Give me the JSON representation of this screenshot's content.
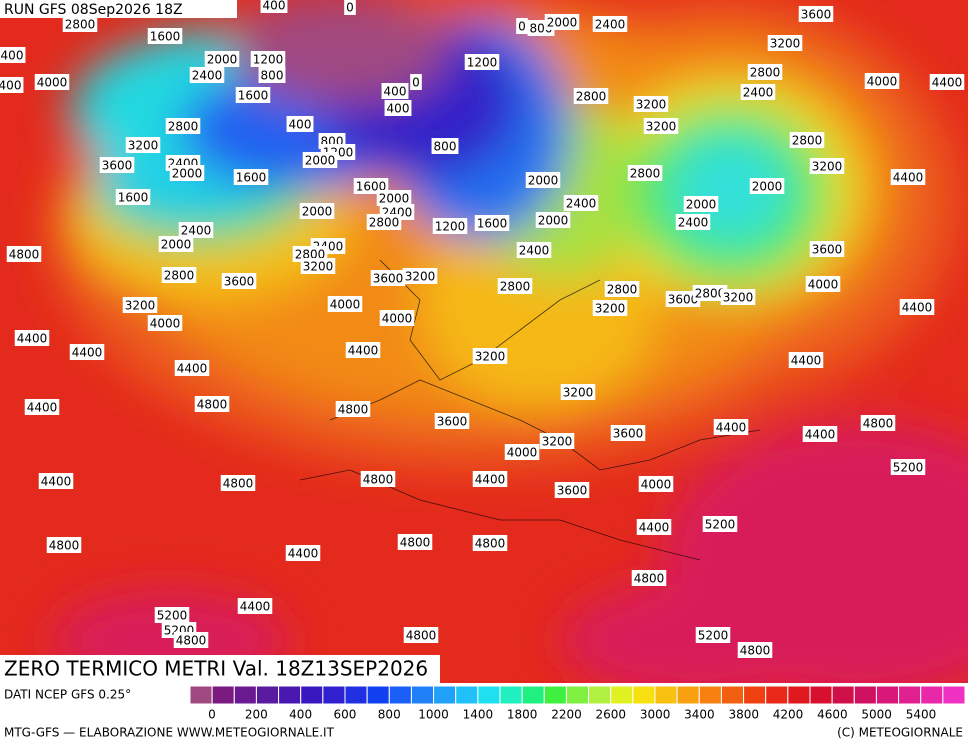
{
  "header": {
    "run": "RUN GFS 08Sep2026 18Z"
  },
  "map": {
    "title": "ZERO TERMICO METRI Val. 18Z13SEP2026",
    "contour_labels": [
      "2800",
      "1600",
      "400",
      "400",
      "4000",
      "2000",
      "1200",
      "800",
      "2400",
      "1600",
      "400",
      "0",
      "2800",
      "3200",
      "400",
      "800",
      "1200",
      "2000",
      "2400",
      "2000",
      "3600",
      "1600",
      "1600",
      "1600",
      "2000",
      "2400",
      "2800",
      "2000",
      "2400",
      "2000",
      "2400",
      "2800",
      "3200",
      "2800",
      "3600",
      "3600",
      "3200",
      "3200",
      "4000",
      "4000",
      "4000",
      "4800",
      "4400",
      "4400",
      "4400",
      "4400",
      "4400",
      "4800",
      "4800",
      "400",
      "400",
      "0",
      "800",
      "1200",
      "0",
      "800",
      "2000",
      "2400",
      "3600",
      "3200",
      "2800",
      "4000",
      "4400",
      "2400",
      "2800",
      "3200",
      "3200",
      "2800",
      "3200",
      "2800",
      "2000",
      "2000",
      "4400",
      "2400",
      "2000",
      "2000",
      "2400",
      "1200",
      "1600",
      "2400",
      "3600",
      "2800",
      "2800",
      "4000",
      "3600",
      "2800",
      "3200",
      "3200",
      "4400",
      "3200",
      "4400",
      "3200",
      "3600",
      "4400",
      "4400",
      "4800",
      "3600",
      "3200",
      "4000",
      "4400",
      "4800",
      "4800",
      "4400",
      "3600",
      "4000",
      "5200",
      "5200",
      "4400",
      "4800",
      "4400",
      "4800",
      "4800",
      "4800",
      "4400",
      "5200",
      "5200",
      "4800",
      "4800",
      "5200",
      "4800"
    ]
  },
  "legend": {
    "source": "DATI NCEP GFS 0.25°",
    "colors": [
      "#a04880",
      "#7a1a80",
      "#6a1a90",
      "#5a1aa0",
      "#4a18b0",
      "#3a18c0",
      "#3020d0",
      "#2030e0",
      "#1040f0",
      "#1a60f8",
      "#2080f8",
      "#20a0f8",
      "#20c0f8",
      "#20e0f0",
      "#20f0c0",
      "#20f080",
      "#40f040",
      "#80f040",
      "#b0f040",
      "#e0f020",
      "#f8e010",
      "#f8c010",
      "#f8a010",
      "#f88010",
      "#f06010",
      "#f04010",
      "#e82818",
      "#e01820",
      "#d81030",
      "#d01048",
      "#d01060",
      "#d81878",
      "#e02090",
      "#e828a8",
      "#f030c0"
    ],
    "labels": [
      0,
      200,
      400,
      600,
      800,
      1000,
      1400,
      1800,
      2200,
      2600,
      3000,
      3400,
      3800,
      4200,
      4600,
      5000,
      5400
    ]
  },
  "footer": {
    "left": "MTG-GFS — ELABORAZIONE WWW.METEOGIORNALE.IT",
    "right": "(C) METEOGIORNALE"
  }
}
